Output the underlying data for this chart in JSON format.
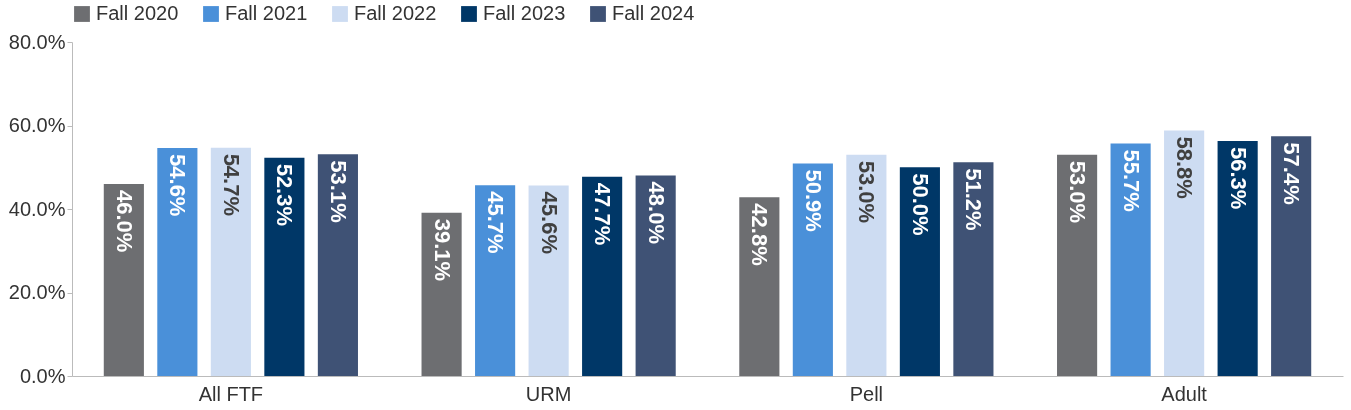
{
  "chart_data": {
    "type": "bar",
    "categories": [
      "All FTF",
      "URM",
      "Pell",
      "Adult"
    ],
    "series": [
      {
        "name": "Fall 2020",
        "color": "#6d6e71",
        "values": [
          46.0,
          39.1,
          42.8,
          53.0
        ],
        "value_labels": [
          "46.0%",
          "39.1%",
          "42.8%",
          "53.0%"
        ]
      },
      {
        "name": "Fall 2021",
        "color": "#4a90d9",
        "values": [
          54.6,
          45.7,
          50.9,
          55.7
        ],
        "value_labels": [
          "54.6%",
          "45.7%",
          "50.9%",
          "55.7%"
        ]
      },
      {
        "name": "Fall 2022",
        "color": "#cddcf2",
        "values": [
          54.7,
          45.6,
          53.0,
          58.8
        ],
        "value_labels": [
          "54.7%",
          "45.6%",
          "53.0%",
          "58.8%"
        ]
      },
      {
        "name": "Fall 2023",
        "color": "#003767",
        "values": [
          52.3,
          47.7,
          50.0,
          56.3
        ],
        "value_labels": [
          "52.3%",
          "47.7%",
          "50.0%",
          "56.3%"
        ]
      },
      {
        "name": "Fall 2024",
        "color": "#3f5275",
        "values": [
          53.1,
          48.0,
          51.2,
          57.4
        ],
        "value_labels": [
          "53.1%",
          "48.0%",
          "51.2%",
          "57.4%"
        ]
      }
    ],
    "ylim": [
      0,
      80
    ],
    "yticks": [
      {
        "value": 0,
        "label": "0.0%"
      },
      {
        "value": 20,
        "label": "20.0%"
      },
      {
        "value": 40,
        "label": "40.0%"
      },
      {
        "value": 60,
        "label": "60.0%"
      },
      {
        "value": 80,
        "label": "80.0%"
      }
    ],
    "grid": false,
    "legend": "top"
  }
}
